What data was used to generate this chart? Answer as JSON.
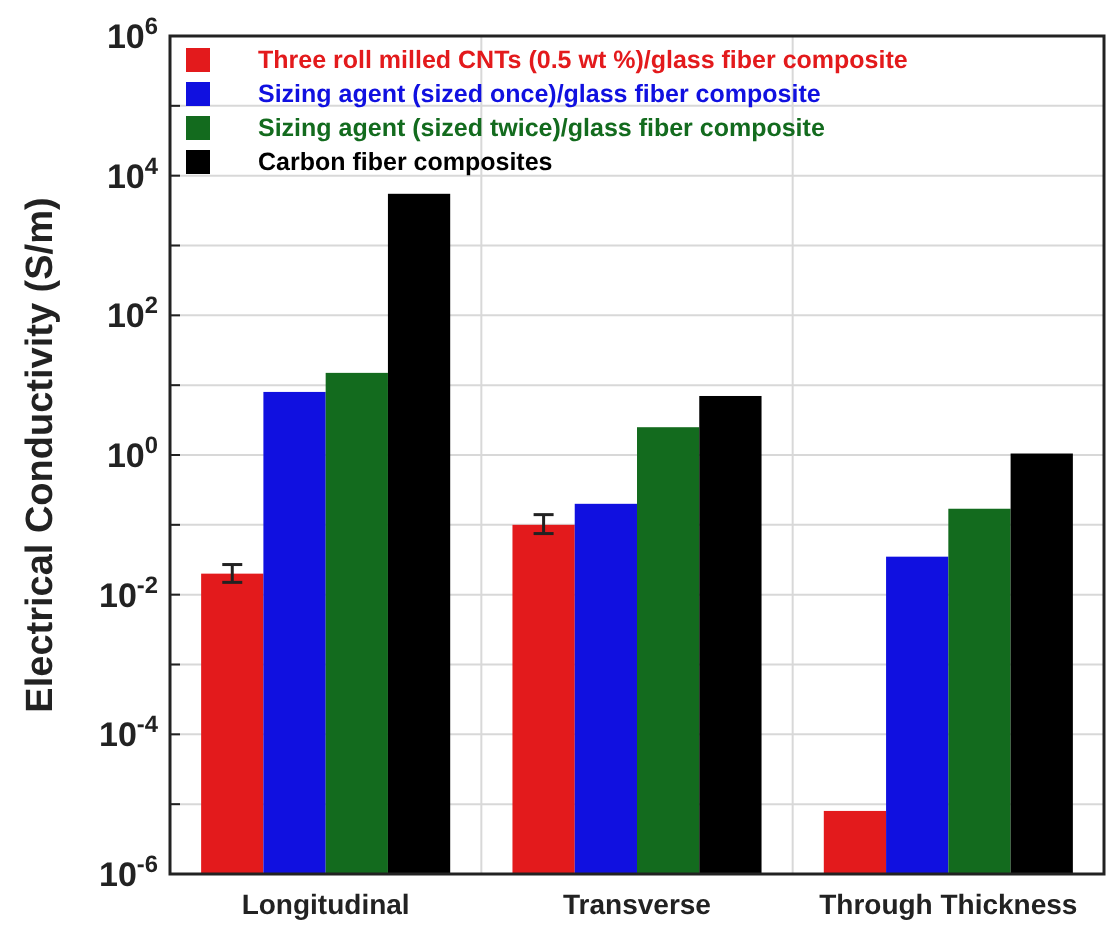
{
  "chart_data": {
    "type": "bar",
    "ylabel": "Electrical Conductivity (S/m)",
    "categories": [
      "Longitudinal",
      "Transverse",
      "Through Thickness"
    ],
    "log": "y",
    "ylim": [
      1e-06,
      1000000.0
    ],
    "yticks": [
      {
        "value": 1e-06,
        "label": "10$^{-6}$"
      },
      {
        "value": 1e-05,
        "label": null
      },
      {
        "value": 0.0001,
        "label": "10$^{-4}$"
      },
      {
        "value": 0.001,
        "label": null
      },
      {
        "value": 0.01,
        "label": "10$^{-2}$"
      },
      {
        "value": 0.1,
        "label": null
      },
      {
        "value": 1,
        "label": "10$^{0}$"
      },
      {
        "value": 10,
        "label": null
      },
      {
        "value": 100,
        "label": "10$^{2}$"
      },
      {
        "value": 1000,
        "label": null
      },
      {
        "value": 10000,
        "label": "10$^{4}$"
      },
      {
        "value": 100000,
        "label": null
      },
      {
        "value": 1000000,
        "label": "10$^{6}$"
      }
    ],
    "grid": "y",
    "legend": "top left",
    "series": [
      {
        "name": "Three roll milled CNTs (0.5 wt %)/glass fiber composite",
        "color": "#e31a1c",
        "values": [
          0.02,
          0.1,
          8e-06
        ],
        "errors": [
          [
            0.015,
            0.027
          ],
          [
            0.075,
            0.14
          ],
          null
        ]
      },
      {
        "name": "Sizing agent (sized once)/glass fiber composite",
        "color": "#1010e0",
        "values": [
          8,
          0.2,
          0.035
        ]
      },
      {
        "name": "Sizing agent (sized twice)/glass fiber composite",
        "color": "#136b1e",
        "values": [
          15,
          2.5,
          0.17
        ]
      },
      {
        "name": "Carbon fiber composites",
        "color": "#000000",
        "values": [
          5500,
          7,
          1.05
        ]
      }
    ]
  }
}
